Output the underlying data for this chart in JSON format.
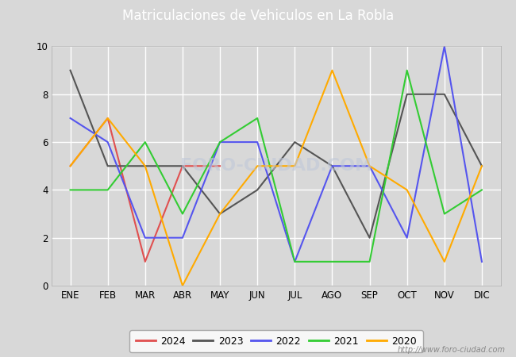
{
  "title": "Matriculaciones de Vehiculos en La Robla",
  "months": [
    "ENE",
    "FEB",
    "MAR",
    "ABR",
    "MAY",
    "JUN",
    "JUL",
    "AGO",
    "SEP",
    "OCT",
    "NOV",
    "DIC"
  ],
  "series": {
    "2024": [
      5,
      7,
      1,
      5,
      5,
      null,
      null,
      null,
      null,
      null,
      null,
      null
    ],
    "2023": [
      9,
      5,
      5,
      5,
      3,
      4,
      6,
      5,
      2,
      8,
      8,
      5
    ],
    "2022": [
      7,
      6,
      2,
      2,
      6,
      6,
      1,
      5,
      5,
      2,
      10,
      1
    ],
    "2021": [
      4,
      4,
      6,
      3,
      6,
      7,
      1,
      1,
      1,
      9,
      3,
      4
    ],
    "2020": [
      5,
      7,
      5,
      0,
      3,
      5,
      5,
      9,
      5,
      4,
      1,
      5
    ]
  },
  "colors": {
    "2024": "#e05050",
    "2023": "#555555",
    "2022": "#5555ee",
    "2021": "#33cc33",
    "2020": "#ffaa00"
  },
  "ylim": [
    0,
    10
  ],
  "yticks": [
    0,
    2,
    4,
    6,
    8,
    10
  ],
  "fig_bg_color": "#d8d8d8",
  "plot_bg_color": "#d8d8d8",
  "title_bg_color": "#4a6fa5",
  "title_color": "#ffffff",
  "title_fontsize": 12,
  "watermark": "http://www.foro-ciudad.com",
  "legend_order": [
    "2024",
    "2023",
    "2022",
    "2021",
    "2020"
  ]
}
